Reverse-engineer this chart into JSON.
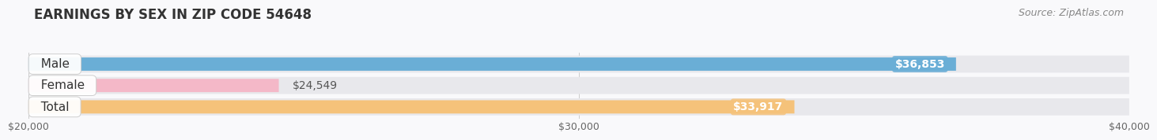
{
  "title": "EARNINGS BY SEX IN ZIP CODE 54648",
  "source": "Source: ZipAtlas.com",
  "categories": [
    "Male",
    "Female",
    "Total"
  ],
  "values": [
    36853,
    24549,
    33917
  ],
  "bar_colors": [
    "#6aaed6",
    "#f4b8c8",
    "#f5c27a"
  ],
  "value_labels": [
    "$36,853",
    "$24,549",
    "$33,917"
  ],
  "label_inside": [
    true,
    false,
    true
  ],
  "xlim": [
    20000,
    40000
  ],
  "xmin": 20000,
  "xmax": 40000,
  "xticks": [
    20000,
    30000,
    40000
  ],
  "xtick_labels": [
    "$20,000",
    "$30,000",
    "$40,000"
  ],
  "bar_height": 0.62,
  "bg_bar_color": "#e8e8ec",
  "title_fontsize": 12,
  "source_fontsize": 9,
  "label_fontsize": 11,
  "value_fontsize": 10,
  "tick_fontsize": 9,
  "fig_bg": "#f9f9fb"
}
